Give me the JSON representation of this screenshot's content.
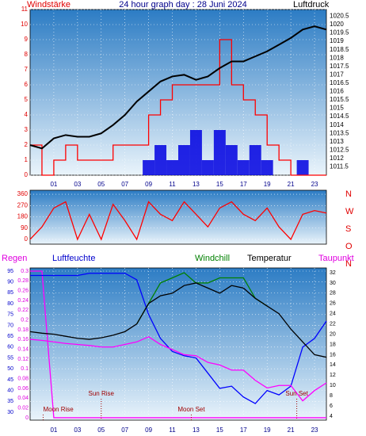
{
  "chart_data": [
    {
      "type": "combo",
      "title": "24 hour graph day : 28 Juni 2024",
      "x": [
        -1,
        0,
        1,
        2,
        3,
        4,
        5,
        6,
        7,
        8,
        9,
        10,
        11,
        12,
        13,
        14,
        15,
        16,
        17,
        18,
        19,
        20,
        21,
        22,
        23,
        24
      ],
      "xlim": [
        -1,
        24
      ],
      "xticks": [
        {
          "value": 1,
          "label": "01"
        },
        {
          "value": 3,
          "label": "03"
        },
        {
          "value": 5,
          "label": "05"
        },
        {
          "value": 7,
          "label": "07"
        },
        {
          "value": 9,
          "label": "09"
        },
        {
          "value": 11,
          "label": "11"
        },
        {
          "value": 13,
          "label": "13"
        },
        {
          "value": 15,
          "label": "15"
        },
        {
          "value": 17,
          "label": "17"
        },
        {
          "value": 19,
          "label": "19"
        },
        {
          "value": 21,
          "label": "21"
        },
        {
          "value": 23,
          "label": "23"
        }
      ],
      "grid": true,
      "axes": [
        {
          "title": "Windstärke",
          "side": "left",
          "color": "#e00000",
          "lim": [
            0,
            11
          ],
          "ticks": [
            0,
            1,
            2,
            3,
            4,
            5,
            6,
            7,
            8,
            9,
            10,
            11
          ]
        },
        {
          "title": "Luftdruck",
          "side": "right",
          "color": "#000000",
          "lim": [
            1011,
            1020.9
          ],
          "ticks": [
            1011.5,
            1012,
            1012.5,
            1013,
            1013.5,
            1014,
            1014.5,
            1015,
            1015.5,
            1016,
            1016.5,
            1017,
            1017.5,
            1018,
            1018.5,
            1019,
            1019.5,
            1020,
            1020.5
          ]
        }
      ],
      "series": [
        {
          "color": "#0000e0",
          "style": "bar",
          "axis": 0,
          "values": [
            0,
            0,
            0,
            0,
            0,
            0,
            0,
            0,
            0,
            0,
            1,
            2,
            1,
            2,
            3,
            1,
            3,
            2,
            1,
            2,
            1,
            0,
            0,
            1,
            0,
            0
          ]
        },
        {
          "color": "#ff0000",
          "style": "step",
          "axis": 0,
          "values": [
            2,
            0,
            1,
            2,
            1,
            1,
            1,
            2,
            2,
            2,
            4,
            5,
            6,
            6,
            6,
            6,
            9,
            6,
            5,
            4,
            2,
            1,
            0,
            0,
            0,
            0
          ]
        },
        {
          "color": "#000000",
          "style": "line",
          "axis": 1,
          "values": [
            1012.8,
            1012.6,
            1013.2,
            1013.4,
            1013.3,
            1013.3,
            1013.5,
            1014,
            1014.6,
            1015.4,
            1016,
            1016.6,
            1016.9,
            1017,
            1016.7,
            1016.9,
            1017.4,
            1017.8,
            1017.8,
            1018.1,
            1018.4,
            1018.8,
            1019.2,
            1019.7,
            1019.9,
            1019.7
          ]
        }
      ]
    },
    {
      "type": "combo",
      "x": [
        -1,
        0,
        1,
        2,
        3,
        4,
        5,
        6,
        7,
        8,
        9,
        10,
        11,
        12,
        13,
        14,
        15,
        16,
        17,
        18,
        19,
        20,
        21,
        22,
        23,
        24
      ],
      "xlim": [
        -1,
        24
      ],
      "grid": true,
      "compass": [
        "N",
        "W",
        "S",
        "O",
        "N"
      ],
      "axes": [
        {
          "side": "left",
          "color": "#e00000",
          "lim": [
            -38,
            392
          ],
          "ticks": [
            0,
            90,
            180,
            270,
            360
          ]
        }
      ],
      "series": [
        {
          "color": "#ff0000",
          "style": "line",
          "axis": 0,
          "values": [
            0,
            100,
            250,
            300,
            0,
            200,
            0,
            280,
            150,
            0,
            300,
            200,
            150,
            300,
            200,
            100,
            250,
            300,
            200,
            150,
            250,
            100,
            0,
            200,
            230,
            210
          ]
        }
      ]
    },
    {
      "type": "combo",
      "x": [
        -1,
        0,
        1,
        2,
        3,
        4,
        5,
        6,
        7,
        8,
        9,
        10,
        11,
        12,
        13,
        14,
        15,
        16,
        17,
        18,
        19,
        20,
        21,
        22,
        23,
        24
      ],
      "xlim": [
        -1,
        24
      ],
      "xticks": [
        {
          "value": 1,
          "label": "01"
        },
        {
          "value": 3,
          "label": "03"
        },
        {
          "value": 5,
          "label": "05"
        },
        {
          "value": 7,
          "label": "07"
        },
        {
          "value": 9,
          "label": "09"
        },
        {
          "value": 11,
          "label": "11"
        },
        {
          "value": 13,
          "label": "13"
        },
        {
          "value": 15,
          "label": "15"
        },
        {
          "value": 17,
          "label": "17"
        },
        {
          "value": 19,
          "label": "19"
        },
        {
          "value": 21,
          "label": "21"
        },
        {
          "value": 23,
          "label": "23"
        }
      ],
      "grid": true,
      "axes": [
        {
          "title": "Luftfeuchte",
          "side": "left",
          "color": "#0000cc",
          "lim": [
            26.35,
            96.46
          ],
          "ticks": [
            30,
            35,
            40,
            45,
            50,
            55,
            60,
            65,
            70,
            75,
            80,
            85,
            90,
            95
          ]
        },
        {
          "title": "Regen",
          "side": "left2",
          "color": "#e000e0",
          "lim": [
            -0.005,
            0.3065
          ],
          "ticks": [
            0,
            0.02,
            0.04,
            0.06,
            0.08,
            0.1,
            0.12,
            0.14,
            0.16,
            0.18,
            0.2,
            0.22,
            0.24,
            0.26,
            0.28,
            0.3
          ]
        },
        {
          "title": "Temperatur",
          "side": "right",
          "color": "#000000",
          "lim": [
            3.23,
            32.93
          ],
          "ticks": [
            4,
            6,
            8,
            10,
            12,
            14,
            16,
            18,
            20,
            22,
            24,
            26,
            28,
            30,
            32
          ]
        }
      ],
      "labels": [
        {
          "text": "Windchill",
          "color": "#008000"
        },
        {
          "text": "Taupunkt",
          "color": "#e000e0"
        }
      ],
      "annotations": [
        {
          "text": "Moon Rise",
          "x": 0.1
        },
        {
          "text": "Sun Rise",
          "x": 5
        },
        {
          "text": "Moon Set",
          "x": 12.6
        },
        {
          "text": "Sun Set",
          "x": 21.5
        }
      ],
      "series": [
        {
          "color": "#ff00ff",
          "style": "line",
          "axis": 1,
          "values": [
            0.3,
            0.3,
            0,
            0,
            0,
            0,
            0,
            0,
            0,
            0,
            0,
            0,
            0,
            0,
            0,
            0,
            0,
            0,
            0,
            0,
            0,
            0,
            0,
            0,
            0,
            0
          ]
        },
        {
          "color": "#0000ff",
          "style": "line",
          "axis": 0,
          "values": [
            93,
            93,
            93,
            93,
            93,
            94,
            94,
            94,
            94,
            91,
            75,
            64,
            58,
            56,
            55,
            48,
            41,
            42,
            37,
            34,
            40,
            38,
            42,
            60,
            64,
            72
          ]
        },
        {
          "color": "#ff00ff",
          "style": "line",
          "axis": 2,
          "values": [
            19,
            18.8,
            18.5,
            18.2,
            18,
            17.8,
            17.5,
            17.5,
            18,
            18.5,
            19.5,
            18,
            17,
            16,
            15.8,
            14.5,
            14,
            13,
            13,
            11,
            9.5,
            10,
            10,
            7,
            9,
            10.5
          ]
        },
        {
          "color": "#008000",
          "style": "line",
          "axis": 2,
          "values": [
            null,
            null,
            null,
            null,
            null,
            null,
            null,
            null,
            null,
            22,
            26,
            30,
            31,
            32,
            30,
            30,
            31,
            31,
            31,
            27,
            25.5,
            null,
            null,
            null,
            null,
            null
          ]
        },
        {
          "color": "#000000",
          "style": "line",
          "axis": 2,
          "values": [
            20.5,
            20.2,
            20,
            19.6,
            19.2,
            19,
            19.3,
            19.8,
            20.5,
            22,
            26,
            27.5,
            28,
            29.5,
            30,
            29,
            28,
            29.5,
            29,
            27,
            25.5,
            24,
            21,
            18.5,
            16,
            15.5
          ]
        }
      ]
    }
  ]
}
